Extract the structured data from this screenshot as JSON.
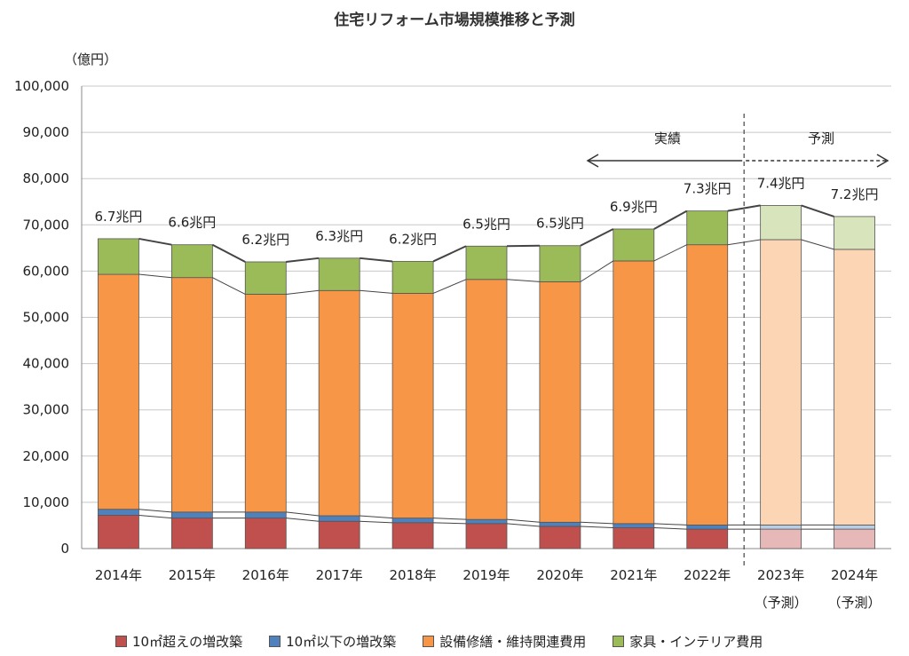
{
  "chart_data": {
    "type": "bar",
    "stacked": true,
    "title": "住宅リフォーム市場規模推移と予測",
    "ylabel": "（億円）",
    "ylim": [
      0,
      100000
    ],
    "yticks": [
      "0",
      "10,000",
      "20,000",
      "30,000",
      "40,000",
      "50,000",
      "60,000",
      "70,000",
      "80,000",
      "90,000",
      "100,000"
    ],
    "categories": [
      "2014年",
      "2015年",
      "2016年",
      "2017年",
      "2018年",
      "2019年",
      "2020年",
      "2021年",
      "2022年",
      "2023年",
      "2024年"
    ],
    "category_sublabels": [
      "",
      "",
      "",
      "",
      "",
      "",
      "",
      "",
      "",
      "（予測）",
      "（予測）"
    ],
    "forecast_flags": [
      false,
      false,
      false,
      false,
      false,
      false,
      false,
      false,
      false,
      true,
      true
    ],
    "series": [
      {
        "name": "10㎡超えの増改築",
        "color": "#c0504d",
        "forecast_color": "#e6b9b8",
        "values": [
          7200,
          6600,
          6600,
          5900,
          5600,
          5400,
          4800,
          4500,
          4200,
          4200,
          4200
        ]
      },
      {
        "name": "10㎡以下の増改築",
        "color": "#4f81bd",
        "forecast_color": "#b9cde5",
        "values": [
          1300,
          1300,
          1300,
          1200,
          1000,
          900,
          900,
          900,
          900,
          900,
          900
        ]
      },
      {
        "name": "設備修繕・維持関連費用",
        "color": "#f79646",
        "forecast_color": "#fcd5b4",
        "values": [
          50800,
          50700,
          47100,
          48700,
          48600,
          51900,
          52000,
          56800,
          60600,
          61700,
          59600
        ]
      },
      {
        "name": "家具・インテリア費用",
        "color": "#9bbb59",
        "forecast_color": "#d7e4bc",
        "values": [
          7700,
          7100,
          7000,
          7000,
          6900,
          7200,
          7800,
          6900,
          7300,
          7400,
          7100
        ]
      }
    ],
    "totals_labels": [
      "6.7兆円",
      "6.6兆円",
      "6.2兆円",
      "6.3兆円",
      "6.2兆円",
      "6.5兆円",
      "6.5兆円",
      "6.9兆円",
      "7.3兆円",
      "7.4兆円",
      "7.2兆円"
    ],
    "annotations": {
      "actual_label": "実績",
      "forecast_label": "予測"
    },
    "grid": true,
    "legend_position": "bottom"
  }
}
